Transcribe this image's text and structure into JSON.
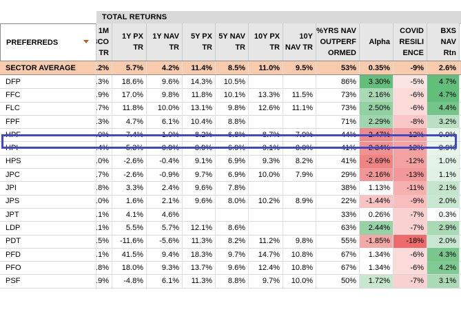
{
  "group_header": "TOTAL RETURNS",
  "columns": [
    {
      "key": "name",
      "lines": [
        "PREFERREDS"
      ]
    },
    {
      "key": "m1",
      "lines": [
        "1M",
        "3CO",
        "TR"
      ]
    },
    {
      "key": "y1px",
      "lines": [
        "1Y PX",
        "TR"
      ]
    },
    {
      "key": "y1nav",
      "lines": [
        "1Y NAV",
        "TR"
      ]
    },
    {
      "key": "y5px",
      "lines": [
        "5Y PX",
        "TR"
      ]
    },
    {
      "key": "y5nav",
      "lines": [
        "5Y NAV",
        "TR"
      ]
    },
    {
      "key": "y10px",
      "lines": [
        "10Y PX",
        "TR"
      ]
    },
    {
      "key": "y10nav",
      "lines": [
        "10Y",
        "NAV TR"
      ]
    },
    {
      "key": "pct",
      "lines": [
        "%YRS NAV",
        "OUTPERF",
        "ORMED"
      ]
    },
    {
      "key": "alpha",
      "lines": [
        "Alpha"
      ]
    },
    {
      "key": "covid",
      "lines": [
        "COVID",
        "RESILI",
        "ENCE"
      ]
    },
    {
      "key": "bxs",
      "lines": [
        "BXS",
        "NAV",
        "Rtn"
      ]
    }
  ],
  "sector_average": {
    "name": "SECTOR AVERAGE",
    "values": [
      ".2%",
      "5.7%",
      "4.2%",
      "11.4%",
      "8.5%",
      "11.0%",
      "9.5%",
      "53%",
      "0.35%",
      "-9%",
      "2.6%"
    ]
  },
  "rows": [
    {
      "name": "DFP",
      "values": [
        ".3%",
        "18.6%",
        "9.6%",
        "14.3%",
        "10.5%",
        "",
        "",
        "86%",
        "3.30%",
        "-5%",
        "4.7%"
      ],
      "alpha_color": "#63be7b",
      "covid_color": "#fbe4e4",
      "bxs_color": "#63be7b"
    },
    {
      "name": "FFC",
      "values": [
        ".9%",
        "17.0%",
        "9.8%",
        "11.8%",
        "10.1%",
        "13.3%",
        "11.5%",
        "73%",
        "2.16%",
        "-6%",
        "4.7%"
      ],
      "alpha_color": "#a9dab5",
      "covid_color": "#fbdada",
      "bxs_color": "#63be7b"
    },
    {
      "name": "FLC",
      "values": [
        ".7%",
        "11.8%",
        "10.0%",
        "13.1%",
        "9.8%",
        "12.6%",
        "11.1%",
        "73%",
        "2.50%",
        "-6%",
        "4.4%"
      ],
      "alpha_color": "#93d1a3",
      "covid_color": "#fbdada",
      "bxs_color": "#75c58a"
    },
    {
      "name": "FPF",
      "values": [
        ".3%",
        "4.7%",
        "6.1%",
        "10.4%",
        "8.8%",
        "",
        "",
        "71%",
        "2.29%",
        "-8%",
        "3.2%"
      ],
      "alpha_color": "#a0d6ae",
      "covid_color": "#f9c7c7",
      "bxs_color": "#b9e0c2"
    },
    {
      "name": "HPF",
      "values": [
        ".0%",
        "-7.4%",
        "-1.0%",
        "8.2%",
        "6.8%",
        "8.7%",
        "7.9%",
        "44%",
        "-2.47%",
        "-12%",
        "0.9%"
      ],
      "alpha_color": "#f08a8a",
      "covid_color": "#f4a1a1",
      "bxs_color": "#e8f5eb"
    },
    {
      "name": "HPI",
      "values": [
        ".4%",
        "-5.3%",
        "-0.9%",
        "8.9%",
        "6.9%",
        "9.1%",
        "8.0%",
        "41%",
        "-2.34%",
        "-12%",
        "0.9%"
      ],
      "alpha_color": "#f19090",
      "covid_color": "#f4a1a1",
      "bxs_color": "#e8f5eb"
    },
    {
      "name": "HPS",
      "values": [
        ".0%",
        "-2.6%",
        "-0.4%",
        "9.1%",
        "6.9%",
        "9.3%",
        "8.2%",
        "41%",
        "-2.69%",
        "-12%",
        "1.0%"
      ],
      "alpha_color": "#ef8484",
      "covid_color": "#f4a1a1",
      "bxs_color": "#e4f3e8"
    },
    {
      "name": "JPC",
      "values": [
        ".7%",
        "-2.6%",
        "-0.9%",
        "9.7%",
        "6.9%",
        "10.0%",
        "7.9%",
        "29%",
        "-2.16%",
        "-13%",
        "1.1%"
      ],
      "alpha_color": "#f29797",
      "covid_color": "#f29898",
      "bxs_color": "#e0f2e5"
    },
    {
      "name": "JPI",
      "values": [
        ".8%",
        "3.3%",
        "2.4%",
        "9.6%",
        "7.8%",
        "",
        "",
        "38%",
        "1.13%",
        "-11%",
        "2.1%"
      ],
      "alpha_color": "#ffffff",
      "covid_color": "#f6b0b0",
      "bxs_color": "#c4e5cc"
    },
    {
      "name": "JPS",
      "values": [
        ".0%",
        "1.6%",
        "2.1%",
        "9.6%",
        "8.0%",
        "10.2%",
        "8.9%",
        "22%",
        "-1.44%",
        "-9%",
        "2.0%"
      ],
      "alpha_color": "#f8c3c3",
      "covid_color": "#f8bebe",
      "bxs_color": "#c8e7d0"
    },
    {
      "name": "JPT",
      "values": [
        ".1%",
        "4.1%",
        "4.6%",
        "",
        "",
        "",
        "",
        "33%",
        "0.26%",
        "-7%",
        "0.3%"
      ],
      "alpha_color": "#ffffff",
      "covid_color": "#fad1d1",
      "bxs_color": "#fafdfb"
    },
    {
      "name": "LDP",
      "values": [
        ".1%",
        "5.5%",
        "5.7%",
        "12.1%",
        "8.6%",
        "",
        "",
        "63%",
        "2.44%",
        "-7%",
        "2.9%"
      ],
      "alpha_color": "#96d2a6",
      "covid_color": "#fad1d1",
      "bxs_color": "#a9d9b5"
    },
    {
      "name": "PDT",
      "values": [
        ".5%",
        "-11.6%",
        "-5.6%",
        "11.3%",
        "8.2%",
        "11.2%",
        "9.8%",
        "55%",
        "-1.85%",
        "-18%",
        "2.0%"
      ],
      "alpha_color": "#f4a9a9",
      "covid_color": "#ed6b6b",
      "bxs_color": "#c8e7d0"
    },
    {
      "name": "PFD",
      "values": [
        ".1%",
        "41.5%",
        "9.4%",
        "18.3%",
        "9.7%",
        "14.7%",
        "10.8%",
        "67%",
        "1.34%",
        "-6%",
        "4.3%"
      ],
      "alpha_color": "#ffffff",
      "covid_color": "#fbdada",
      "bxs_color": "#7ac78e"
    },
    {
      "name": "PFO",
      "values": [
        ".8%",
        "18.0%",
        "9.3%",
        "13.7%",
        "9.6%",
        "12.4%",
        "10.8%",
        "67%",
        "1.34%",
        "-6%",
        "4.2%"
      ],
      "alpha_color": "#ffffff",
      "covid_color": "#fbdada",
      "bxs_color": "#80ca93"
    },
    {
      "name": "PSF",
      "values": [
        ".9%",
        "-4.8%",
        "6.1%",
        "11.3%",
        "8.8%",
        "9.7%",
        "10.0%",
        "50%",
        "1.72%",
        "-7%",
        "3.1%"
      ],
      "alpha_color": "#c7e8cf",
      "covid_color": "#fad1d1",
      "bxs_color": "#aadab6"
    }
  ]
}
